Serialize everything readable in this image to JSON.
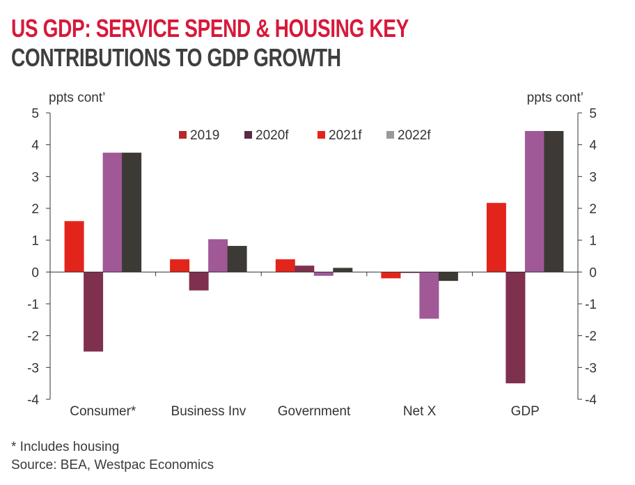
{
  "title": "US GDP: SERVICE SPEND & HOUSING KEY",
  "subtitle": "CONTRIBUTIONS TO GDP GROWTH",
  "footnote": "* Includes housing",
  "source": "Source: BEA, Westpac Economics",
  "chart_data": {
    "type": "bar",
    "ylabel_left": "ppts cont’",
    "ylabel_right": "ppts cont’",
    "ylim": [
      -4,
      5
    ],
    "yticks": [
      -4,
      -3,
      -2,
      -1,
      0,
      1,
      2,
      3,
      4,
      5
    ],
    "grid": false,
    "legend_position": "top-center",
    "categories": [
      "Consumer*",
      "Business Inv",
      "Government",
      "Net X",
      "GDP"
    ],
    "series": [
      {
        "name": "2019",
        "color": "#e3241b",
        "values": [
          1.6,
          0.4,
          0.4,
          -0.2,
          2.17
        ]
      },
      {
        "name": "2020f",
        "color": "#80304f",
        "values": [
          -2.5,
          -0.58,
          0.2,
          -0.03,
          -3.5
        ]
      },
      {
        "name": "2021f",
        "color": "#a05897",
        "values": [
          3.75,
          1.03,
          -0.12,
          -1.47,
          4.43
        ]
      },
      {
        "name": "2022f",
        "color": "#3d3a36",
        "values": [
          3.75,
          0.82,
          0.13,
          -0.28,
          4.43
        ]
      }
    ],
    "legend_colors": [
      "#b5292d",
      "#5a2a48",
      "#e3241b",
      "#999999"
    ]
  }
}
